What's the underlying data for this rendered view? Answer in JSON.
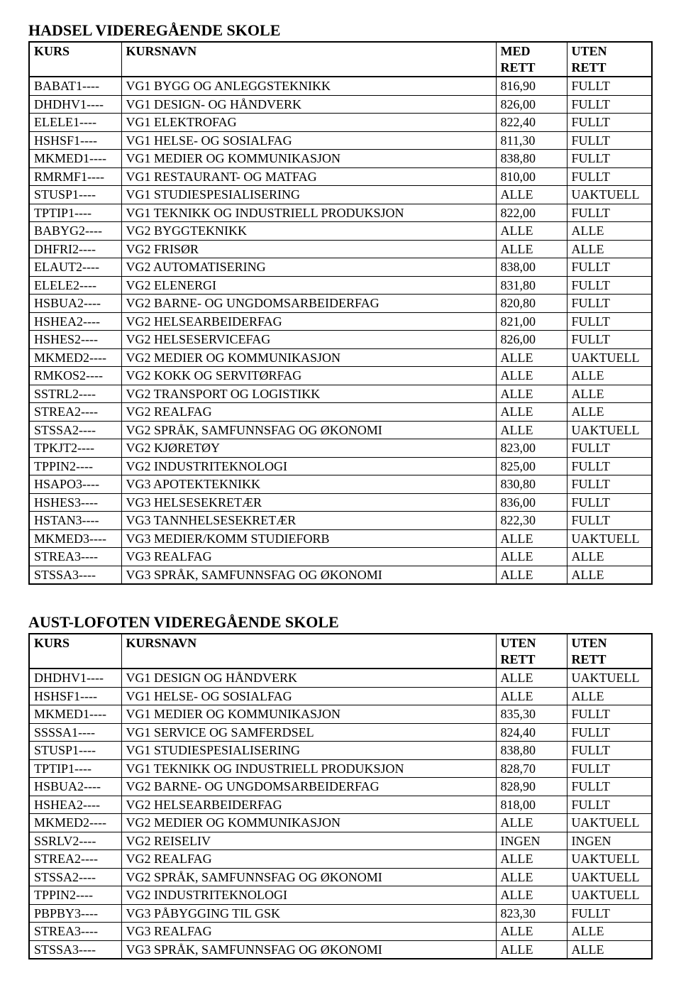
{
  "schools": [
    {
      "title": "HADSEL VIDEREGÅENDE SKOLE",
      "header": {
        "col0": "KURS",
        "col1": "KURSNAVN",
        "col2a": "MED",
        "col2b": "RETT",
        "col3a": "UTEN",
        "col3b": "RETT"
      },
      "rows": [
        [
          "BABAT1----",
          "VG1 BYGG OG ANLEGGSTEKNIKK",
          "816,90",
          "FULLT"
        ],
        [
          "DHDHV1----",
          "VG1 DESIGN- OG HÅNDVERK",
          "826,00",
          "FULLT"
        ],
        [
          "ELELE1----",
          "VG1 ELEKTROFAG",
          "822,40",
          "FULLT"
        ],
        [
          "HSHSF1----",
          "VG1 HELSE- OG SOSIALFAG",
          "811,30",
          "FULLT"
        ],
        [
          "MKMED1----",
          "VG1 MEDIER OG KOMMUNIKASJON",
          "838,80",
          "FULLT"
        ],
        [
          "RMRMF1----",
          "VG1 RESTAURANT- OG MATFAG",
          "810,00",
          "FULLT"
        ],
        [
          "STUSP1----",
          "VG1 STUDIESPESIALISERING",
          "ALLE",
          "UAKTUELL"
        ],
        [
          "TPTIP1----",
          "VG1 TEKNIKK OG INDUSTRIELL PRODUKSJON",
          "822,00",
          "FULLT"
        ],
        [
          "BABYG2----",
          "VG2 BYGGTEKNIKK",
          "ALLE",
          "ALLE"
        ],
        [
          "DHFRI2----",
          "VG2 FRISØR",
          "ALLE",
          "ALLE"
        ],
        [
          "ELAUT2----",
          "VG2 AUTOMATISERING",
          "838,00",
          "FULLT"
        ],
        [
          "ELELE2----",
          "VG2 ELENERGI",
          "831,80",
          "FULLT"
        ],
        [
          "HSBUA2----",
          "VG2 BARNE- OG UNGDOMSARBEIDERFAG",
          "820,80",
          "FULLT"
        ],
        [
          "HSHEA2----",
          "VG2 HELSEARBEIDERFAG",
          "821,00",
          "FULLT"
        ],
        [
          "HSHES2----",
          "VG2 HELSESERVICEFAG",
          "826,00",
          "FULLT"
        ],
        [
          "MKMED2----",
          "VG2 MEDIER OG KOMMUNIKASJON",
          "ALLE",
          "UAKTUELL"
        ],
        [
          "RMKOS2----",
          "VG2 KOKK OG SERVITØRFAG",
          "ALLE",
          "ALLE"
        ],
        [
          "SSTRL2----",
          "VG2 TRANSPORT OG LOGISTIKK",
          "ALLE",
          "ALLE"
        ],
        [
          "STREA2----",
          "VG2 REALFAG",
          "ALLE",
          "ALLE"
        ],
        [
          "STSSA2----",
          "VG2 SPRÅK, SAMFUNNSFAG OG ØKONOMI",
          "ALLE",
          "UAKTUELL"
        ],
        [
          "TPKJT2----",
          "VG2 KJØRETØY",
          "823,00",
          "FULLT"
        ],
        [
          "TPPIN2----",
          "VG2 INDUSTRITEKNOLOGI",
          "825,00",
          "FULLT"
        ],
        [
          "HSAPO3----",
          "VG3 APOTEKTEKNIKK",
          "830,80",
          "FULLT"
        ],
        [
          "HSHES3----",
          "VG3 HELSESEKRETÆR",
          "836,00",
          "FULLT"
        ],
        [
          "HSTAN3----",
          "VG3 TANNHELSESEKRETÆR",
          "822,30",
          "FULLT"
        ],
        [
          "MKMED3----",
          "VG3 MEDIER/KOMM STUDIEFORB",
          "ALLE",
          "UAKTUELL"
        ],
        [
          "STREA3----",
          "VG3 REALFAG",
          "ALLE",
          "ALLE"
        ],
        [
          "STSSA3----",
          "VG3 SPRÅK, SAMFUNNSFAG OG ØKONOMI",
          "ALLE",
          "ALLE"
        ]
      ]
    },
    {
      "title": "AUST-LOFOTEN VIDEREGÅENDE SKOLE",
      "header": {
        "col0": "KURS",
        "col1": "KURSNAVN",
        "col2a": "UTEN",
        "col2b": "RETT",
        "col3a": "UTEN",
        "col3b": "RETT"
      },
      "rows": [
        [
          "DHDHV1----",
          "VG1 DESIGN OG HÅNDVERK",
          "ALLE",
          "UAKTUELL"
        ],
        [
          "HSHSF1----",
          "VG1 HELSE- OG SOSIALFAG",
          "ALLE",
          "ALLE"
        ],
        [
          "MKMED1----",
          "VG1 MEDIER OG KOMMUNIKASJON",
          "835,30",
          "FULLT"
        ],
        [
          "SSSSA1----",
          "VG1 SERVICE OG SAMFERDSEL",
          "824,40",
          "FULLT"
        ],
        [
          "STUSP1----",
          "VG1 STUDIESPESIALISERING",
          "838,80",
          "FULLT"
        ],
        [
          "TPTIP1----",
          "VG1 TEKNIKK OG INDUSTRIELL PRODUKSJON",
          "828,70",
          "FULLT"
        ],
        [
          "HSBUA2----",
          "VG2 BARNE- OG UNGDOMSARBEIDERFAG",
          "828,90",
          "FULLT"
        ],
        [
          "HSHEA2----",
          "VG2 HELSEARBEIDERFAG",
          "818,00",
          "FULLT"
        ],
        [
          "MKMED2----",
          "VG2 MEDIER OG KOMMUNIKASJON",
          "ALLE",
          "UAKTUELL"
        ],
        [
          "SSRLV2----",
          "VG2 REISELIV",
          "INGEN",
          "INGEN"
        ],
        [
          "STREA2----",
          "VG2 REALFAG",
          "ALLE",
          "UAKTUELL"
        ],
        [
          "STSSA2----",
          "VG2 SPRÅK, SAMFUNNSFAG OG ØKONOMI",
          "ALLE",
          "UAKTUELL"
        ],
        [
          "TPPIN2----",
          "VG2 INDUSTRITEKNOLOGI",
          "ALLE",
          "UAKTUELL"
        ],
        [
          "PBPBY3----",
          "VG3 PÅBYGGING TIL GSK",
          "823,30",
          "FULLT"
        ],
        [
          "STREA3----",
          "VG3 REALFAG",
          "ALLE",
          "ALLE"
        ],
        [
          "STSSA3----",
          "VG3 SPRÅK, SAMFUNNSFAG OG ØKONOMI",
          "ALLE",
          "ALLE"
        ]
      ]
    }
  ]
}
